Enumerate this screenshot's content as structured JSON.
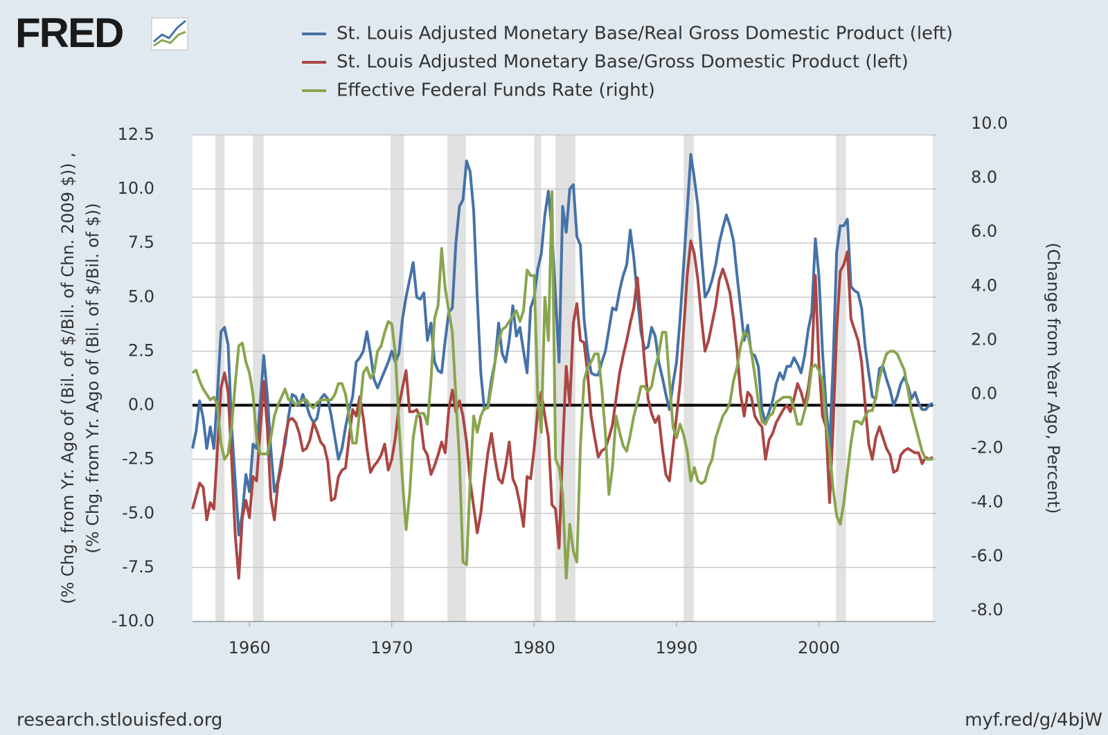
{
  "chart_data": {
    "type": "line",
    "logo": "FRED",
    "source": "research.stlouisfed.org",
    "link": "myf.red/g/4bjW",
    "ylabel": [
      "(% Chg. from Yr. Ago of (Bil. of $/Bil. of Chn. 2009 $)) ,",
      "(% Chg. from Yr. Ago of (Bil. of $/Bil. of $))"
    ],
    "y2label": "(Change from Year Ago, Percent)",
    "xlim": [
      1956,
      2008
    ],
    "xticks": [
      1960,
      1970,
      1980,
      1990,
      2000
    ],
    "ylim": [
      -10,
      12.5
    ],
    "yticks": [
      {
        "value": -10,
        "label": "-10.0"
      },
      -7.5,
      {
        "value": -5,
        "label": "-5.0"
      },
      -2.5,
      {
        "value": 0,
        "label": "0.0"
      },
      2.5,
      {
        "value": 5,
        "label": "5.0"
      },
      7.5,
      {
        "value": 10,
        "label": "10.0"
      },
      12.5
    ],
    "y2lim": [
      -8,
      10
    ],
    "y2ticks": [
      {
        "value": -8,
        "label": "-8.0"
      },
      {
        "value": -6,
        "label": "-6.0"
      },
      {
        "value": -4,
        "label": "-4.0"
      },
      {
        "value": -2,
        "label": "-2.0"
      },
      {
        "value": 0,
        "label": "0.0"
      },
      {
        "value": 2,
        "label": "2.0"
      },
      {
        "value": 4,
        "label": "4.0"
      },
      {
        "value": 6,
        "label": "6.0"
      },
      {
        "value": 8,
        "label": "8.0"
      },
      {
        "value": 10,
        "label": "10.0"
      }
    ],
    "grid": true,
    "recessions": [
      [
        1957.6,
        1958.25
      ],
      [
        1960.25,
        1961.0
      ],
      [
        1969.9,
        1970.85
      ],
      [
        1973.9,
        1975.2
      ],
      [
        1980.0,
        1980.5
      ],
      [
        1981.5,
        1982.9
      ],
      [
        1990.5,
        1991.2
      ],
      [
        2001.2,
        2001.9
      ]
    ],
    "x": [
      1956,
      1956.25,
      1956.5,
      1956.75,
      1957,
      1957.25,
      1957.5,
      1957.75,
      1958,
      1958.25,
      1958.5,
      1958.75,
      1959,
      1959.25,
      1959.5,
      1959.75,
      1960,
      1960.25,
      1960.5,
      1960.75,
      1961,
      1961.25,
      1961.5,
      1961.75,
      1962,
      1962.25,
      1962.5,
      1962.75,
      1963,
      1963.25,
      1963.5,
      1963.75,
      1964,
      1964.25,
      1964.5,
      1964.75,
      1965,
      1965.25,
      1965.5,
      1965.75,
      1966,
      1966.25,
      1966.5,
      1966.75,
      1967,
      1967.25,
      1967.5,
      1967.75,
      1968,
      1968.25,
      1968.5,
      1968.75,
      1969,
      1969.25,
      1969.5,
      1969.75,
      1970,
      1970.25,
      1970.5,
      1970.75,
      1971,
      1971.25,
      1971.5,
      1971.75,
      1972,
      1972.25,
      1972.5,
      1972.75,
      1973,
      1973.25,
      1973.5,
      1973.75,
      1974,
      1974.25,
      1974.5,
      1974.75,
      1975,
      1975.25,
      1975.5,
      1975.75,
      1976,
      1976.25,
      1976.5,
      1976.75,
      1977,
      1977.25,
      1977.5,
      1977.75,
      1978,
      1978.25,
      1978.5,
      1978.75,
      1979,
      1979.25,
      1979.5,
      1979.75,
      1980,
      1980.25,
      1980.5,
      1980.75,
      1981,
      1981.25,
      1981.5,
      1981.75,
      1982,
      1982.25,
      1982.5,
      1982.75,
      1983,
      1983.25,
      1983.5,
      1983.75,
      1984,
      1984.25,
      1984.5,
      1984.75,
      1985,
      1985.25,
      1985.5,
      1985.75,
      1986,
      1986.25,
      1986.5,
      1986.75,
      1987,
      1987.25,
      1987.5,
      1987.75,
      1988,
      1988.25,
      1988.5,
      1988.75,
      1989,
      1989.25,
      1989.5,
      1989.75,
      1990,
      1990.25,
      1990.5,
      1990.75,
      1991,
      1991.25,
      1991.5,
      1991.75,
      1992,
      1992.25,
      1992.5,
      1992.75,
      1993,
      1993.25,
      1993.5,
      1993.75,
      1994,
      1994.25,
      1994.5,
      1994.75,
      1995,
      1995.25,
      1995.5,
      1995.75,
      1996,
      1996.25,
      1996.5,
      1996.75,
      1997,
      1997.25,
      1997.5,
      1997.75,
      1998,
      1998.25,
      1998.5,
      1998.75,
      1999,
      1999.25,
      1999.5,
      1999.75,
      2000,
      2000.25,
      2000.5,
      2000.75,
      2001,
      2001.25,
      2001.5,
      2001.75,
      2002,
      2002.25,
      2002.5,
      2002.75,
      2003,
      2003.25,
      2003.5,
      2003.75,
      2004,
      2004.25,
      2004.5,
      2004.75,
      2005,
      2005.25,
      2005.5,
      2005.75,
      2006,
      2006.25,
      2006.5,
      2006.75,
      2007,
      2007.25,
      2007.5,
      2007.75,
      2008
    ],
    "series": [
      {
        "name": "St. Louis Adjusted Monetary Base/Real Gross Domestic Product (left)",
        "color": "#4572a7",
        "axis": "y",
        "values": [
          -2.0,
          -1.2,
          0.2,
          -0.6,
          -2.0,
          -1.0,
          -2.0,
          0.5,
          3.4,
          3.6,
          2.8,
          -1.0,
          -3.5,
          -6.0,
          -5.0,
          -3.2,
          -4.0,
          -1.8,
          -2.0,
          0.0,
          2.3,
          0.5,
          -2.0,
          -4.0,
          -3.5,
          -2.5,
          -1.8,
          -0.5,
          0.5,
          0.4,
          0.0,
          0.5,
          0.0,
          -0.5,
          -0.8,
          -0.6,
          0.3,
          0.5,
          0.3,
          -0.5,
          -1.5,
          -2.5,
          -2.0,
          -1.0,
          -0.2,
          0.4,
          2.0,
          2.2,
          2.5,
          3.4,
          2.4,
          1.2,
          0.8,
          1.2,
          1.6,
          2.0,
          2.5,
          2.0,
          2.4,
          4.0,
          5.0,
          5.8,
          6.6,
          5.0,
          4.9,
          5.2,
          3.0,
          3.8,
          2.0,
          1.6,
          1.5,
          3.0,
          4.3,
          4.5,
          7.5,
          9.2,
          9.5,
          11.3,
          10.8,
          9.0,
          5.0,
          1.5,
          -0.2,
          0.0,
          1.2,
          2.0,
          3.8,
          2.4,
          2.0,
          3.0,
          4.6,
          3.2,
          3.6,
          2.5,
          1.5,
          4.5,
          5.0,
          6.3,
          7.0,
          8.8,
          9.9,
          8.0,
          5.0,
          2.0,
          9.2,
          8.0,
          10.0,
          10.2,
          7.8,
          7.4,
          4.0,
          2.5,
          1.5,
          1.4,
          1.4,
          2.0,
          2.5,
          3.5,
          4.5,
          4.4,
          5.3,
          6.0,
          6.5,
          8.1,
          6.8,
          5.0,
          3.4,
          2.6,
          2.7,
          3.6,
          3.2,
          2.0,
          1.3,
          0.5,
          -0.2,
          1.0,
          2.0,
          4.0,
          6.5,
          9.0,
          11.6,
          10.5,
          9.2,
          7.0,
          5.0,
          5.3,
          5.8,
          6.5,
          7.5,
          8.2,
          8.8,
          8.3,
          7.6,
          6.0,
          4.5,
          3.0,
          3.7,
          2.4,
          2.3,
          1.8,
          -0.2,
          -0.8,
          -0.3,
          0.2,
          1.0,
          1.5,
          1.2,
          1.8,
          1.8,
          2.2,
          1.9,
          1.5,
          2.3,
          3.5,
          4.3,
          7.7,
          6.0,
          2.5,
          0.0,
          -2.0,
          2.0,
          7.1,
          8.3,
          8.3,
          8.6,
          5.5,
          5.3,
          5.2,
          4.5,
          2.7,
          1.5,
          0.4,
          0.3,
          1.7,
          1.8,
          1.2,
          0.7,
          0.0,
          0.4,
          1.0,
          1.3,
          0.9,
          0.3,
          0.6,
          0.1,
          -0.2,
          -0.2,
          0.0,
          0.1
        ]
      },
      {
        "name": "St. Louis Adjusted Monetary Base/Gross Domestic Product (left)",
        "color": "#aa4643",
        "axis": "y",
        "values": [
          -4.8,
          -4.2,
          -3.6,
          -3.8,
          -5.3,
          -4.5,
          -4.8,
          -2.0,
          0.8,
          1.5,
          0.6,
          -2.5,
          -6.0,
          -8.0,
          -5.2,
          -4.4,
          -5.2,
          -3.3,
          -3.5,
          -1.2,
          1.1,
          -1.0,
          -4.3,
          -5.3,
          -3.6,
          -2.8,
          -1.5,
          -0.7,
          -0.6,
          -0.8,
          -1.3,
          -2.1,
          -2.0,
          -1.6,
          -0.8,
          -1.2,
          -1.7,
          -1.9,
          -2.6,
          -4.4,
          -4.3,
          -3.3,
          -3.0,
          -2.9,
          -1.5,
          -0.2,
          -0.5,
          0.4,
          -0.6,
          -2.0,
          -3.1,
          -2.8,
          -2.6,
          -2.3,
          -1.8,
          -3.0,
          -2.5,
          -1.5,
          0.0,
          0.8,
          1.6,
          -0.3,
          -0.3,
          -0.2,
          -0.6,
          -2.0,
          -2.3,
          -3.2,
          -2.8,
          -2.3,
          -1.7,
          -2.2,
          -0.2,
          0.7,
          -0.3,
          0.2,
          -0.5,
          -1.7,
          -3.5,
          -4.7,
          -5.9,
          -5.0,
          -3.5,
          -2.2,
          -1.3,
          -2.5,
          -3.4,
          -3.6,
          -2.8,
          -1.7,
          -3.4,
          -3.8,
          -4.6,
          -5.6,
          -3.3,
          -3.4,
          -2.0,
          -0.2,
          0.6,
          -0.5,
          -1.5,
          -4.6,
          -4.8,
          -6.6,
          -2.0,
          1.8,
          0.0,
          3.8,
          4.7,
          3.0,
          2.9,
          1.5,
          -0.5,
          -1.5,
          -2.4,
          -2.1,
          -2.0,
          -1.5,
          -0.9,
          0.3,
          1.5,
          2.3,
          3.0,
          3.8,
          4.5,
          5.9,
          4.0,
          2.0,
          0.3,
          -0.4,
          -0.8,
          -0.5,
          -2.0,
          -3.2,
          -3.5,
          -2.0,
          -0.5,
          1.0,
          3.5,
          6.0,
          7.6,
          7.0,
          5.8,
          4.0,
          2.5,
          3.0,
          3.8,
          4.6,
          5.8,
          6.3,
          5.8,
          5.2,
          4.0,
          2.5,
          0.5,
          -0.5,
          0.6,
          0.4,
          -0.5,
          -0.8,
          -1.0,
          -2.5,
          -1.6,
          -1.3,
          -0.8,
          -0.5,
          -0.2,
          0.0,
          -0.3,
          0.3,
          1.0,
          0.6,
          0.0,
          0.8,
          2.0,
          6.0,
          2.0,
          -0.5,
          -1.0,
          -4.5,
          -1.0,
          3.5,
          6.2,
          6.5,
          7.1,
          4.0,
          3.5,
          3.0,
          2.0,
          0.0,
          -1.8,
          -2.5,
          -1.5,
          -1.0,
          -1.5,
          -2.0,
          -2.3,
          -3.1,
          -3.0,
          -2.3,
          -2.1,
          -2.0,
          -2.1,
          -2.2,
          -2.2,
          -2.7,
          -2.4,
          -2.5,
          -2.4
        ]
      },
      {
        "name": "Effective Federal Funds Rate (right)",
        "color": "#89a54e",
        "axis": "y2",
        "values": [
          1.2,
          1.3,
          0.9,
          0.6,
          0.4,
          0.2,
          0.3,
          0.0,
          -1.4,
          -2.0,
          -1.8,
          -0.8,
          0.8,
          2.2,
          2.3,
          1.6,
          1.2,
          0.4,
          -1.2,
          -1.8,
          -1.8,
          -1.8,
          -1.2,
          -0.4,
          0.0,
          0.3,
          0.6,
          0.2,
          0.2,
          0.0,
          0.1,
          0.2,
          0.2,
          0.0,
          -0.1,
          0.1,
          0.2,
          0.2,
          0.2,
          0.2,
          0.4,
          0.8,
          0.8,
          0.4,
          -0.4,
          -1.4,
          -1.4,
          -0.2,
          1.2,
          1.4,
          1.0,
          1.2,
          2.0,
          2.2,
          2.7,
          3.1,
          3.0,
          1.9,
          -0.7,
          -2.8,
          -4.6,
          -3.3,
          -1.2,
          -0.4,
          -0.3,
          -0.3,
          -0.7,
          0.9,
          3.2,
          3.7,
          5.8,
          4.3,
          3.5,
          2.7,
          0.3,
          -2.0,
          -5.8,
          -5.9,
          -2.8,
          -0.4,
          -1.0,
          -0.4,
          -0.1,
          -0.1,
          0.7,
          1.6,
          2.4,
          2.8,
          2.9,
          3.1,
          3.3,
          3.5,
          3.1,
          3.5,
          5.0,
          4.8,
          4.8,
          0.3,
          -1.0,
          4.0,
          2.4,
          7.9,
          -2.0,
          -2.3,
          -3.3,
          -6.4,
          -4.4,
          -5.4,
          -5.8,
          -1.5,
          0.9,
          1.4,
          1.6,
          1.9,
          1.9,
          0.6,
          -1.0,
          -3.3,
          -2.3,
          -0.4,
          -1.0,
          -1.5,
          -1.7,
          -1.1,
          -0.4,
          0.1,
          0.7,
          0.7,
          0.5,
          0.7,
          1.4,
          1.9,
          2.7,
          2.7,
          0.9,
          -0.8,
          -1.2,
          -0.7,
          -1.1,
          -1.7,
          -2.8,
          -2.3,
          -2.8,
          -2.9,
          -2.8,
          -2.3,
          -2.0,
          -1.2,
          -0.8,
          -0.4,
          -0.2,
          0.1,
          0.9,
          1.4,
          2.2,
          2.7,
          2.6,
          2.0,
          1.1,
          0.1,
          -0.6,
          -0.7,
          -0.4,
          -0.3,
          0.1,
          0.2,
          0.3,
          0.3,
          0.3,
          -0.1,
          -0.7,
          -0.7,
          -0.2,
          0.3,
          1.4,
          1.5,
          1.3,
          0.9,
          -0.7,
          -1.7,
          -3.1,
          -4.1,
          -4.4,
          -3.6,
          -2.5,
          -1.4,
          -0.6,
          -0.6,
          -0.7,
          -0.4,
          -0.2,
          -0.2,
          0.3,
          1.0,
          1.5,
          1.9,
          2.0,
          2.0,
          1.9,
          1.6,
          1.3,
          0.6,
          -0.2,
          -0.7,
          -1.2,
          -1.7,
          -2.0,
          -2.0,
          -2.0
        ]
      }
    ]
  }
}
